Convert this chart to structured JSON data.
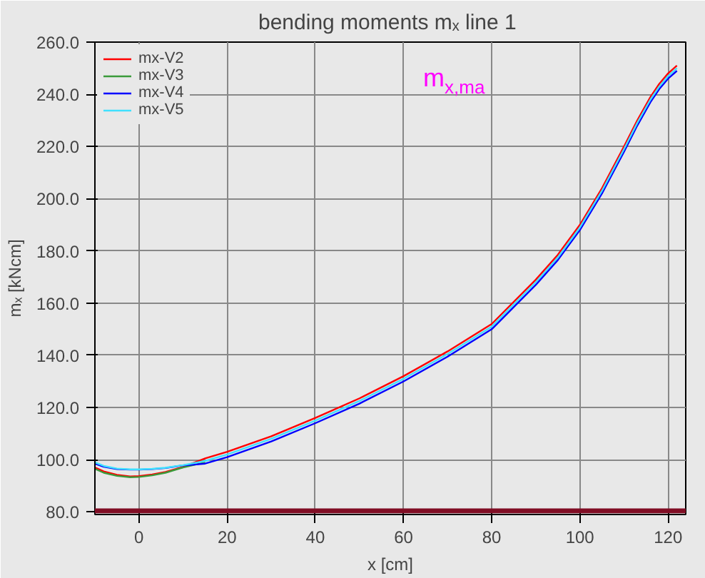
{
  "chart_data": {
    "type": "line",
    "title": "bending moments  mₓ line 1",
    "xlabel": "x [cm]",
    "ylabel": "mₓ [kNcm]",
    "x": [
      -10,
      -8,
      -5,
      -2,
      0,
      3,
      6,
      10,
      15,
      20,
      30,
      40,
      50,
      60,
      70,
      80,
      90,
      95,
      100,
      105,
      110,
      113,
      116,
      118,
      120,
      122
    ],
    "series": [
      {
        "name": "mx-V2",
        "color": "#ff0000",
        "values": [
          97,
          95.5,
          94.2,
          93.6,
          93.7,
          94.3,
          95.3,
          97.2,
          100.5,
          103,
          109,
          116,
          123.5,
          132,
          141.5,
          152,
          169,
          178.5,
          190,
          204,
          220,
          230,
          239,
          244,
          248,
          251
        ]
      },
      {
        "name": "mx-V3",
        "color": "#3a9a3a",
        "values": [
          96.5,
          95,
          93.8,
          93.3,
          93.4,
          94,
          95,
          97,
          99,
          null,
          null,
          null,
          null,
          null,
          null,
          null,
          null,
          null,
          null,
          null,
          null,
          null,
          null,
          null,
          null,
          null
        ]
      },
      {
        "name": "mx-V4",
        "color": "#0000ff",
        "values": [
          98.5,
          97.3,
          96.4,
          96.2,
          96.2,
          96.4,
          96.8,
          97.8,
          98.5,
          101,
          107,
          114,
          121.5,
          130,
          139.5,
          150,
          167,
          176.5,
          188,
          202,
          218,
          228,
          237,
          242,
          246,
          249
        ]
      },
      {
        "name": "mx-V5",
        "color": "#40e0ff",
        "values": [
          99,
          97.6,
          96.6,
          96.3,
          96.3,
          96.5,
          96.9,
          97.9,
          99.5,
          102,
          108,
          115,
          122.5,
          131,
          140.5,
          151,
          168,
          177.5,
          189,
          203,
          219,
          229,
          238,
          243,
          247,
          250
        ]
      }
    ],
    "xlim": [
      -10,
      124
    ],
    "ylim": [
      79,
      260
    ],
    "xticks": [
      0,
      20,
      40,
      60,
      80,
      100,
      120
    ],
    "yticks": [
      {
        "value": 80,
        "label": "80.0"
      },
      {
        "value": 100,
        "label": "100.0"
      },
      {
        "value": 120,
        "label": "120.0"
      },
      {
        "value": 140,
        "label": "140.0"
      },
      {
        "value": 160,
        "label": "160.0"
      },
      {
        "value": 180,
        "label": "180.0"
      },
      {
        "value": 200,
        "label": "200.0"
      },
      {
        "value": 220,
        "label": "220.0"
      },
      {
        "value": 240,
        "label": "240.0"
      },
      {
        "value": 260,
        "label": "260.0"
      }
    ],
    "bands": [
      {
        "axis": "y",
        "from": 79.5,
        "to": 81.3,
        "color": "#800d24"
      }
    ],
    "annotations": [
      "m$_{x,ma}$"
    ],
    "grid": true,
    "legend": "top left",
    "marker": "none",
    "line_style": "solid"
  }
}
